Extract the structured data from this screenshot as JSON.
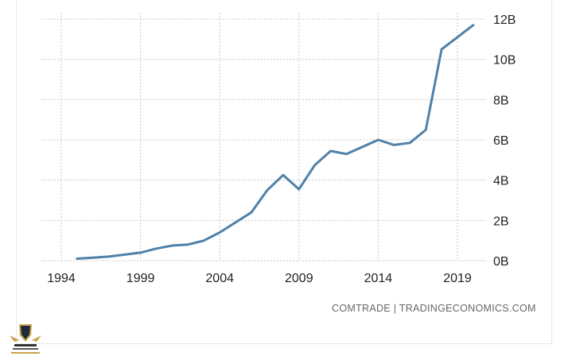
{
  "chart_data": {
    "type": "line",
    "x": [
      1995,
      1996,
      1997,
      1998,
      1999,
      2000,
      2001,
      2002,
      2003,
      2004,
      2005,
      2006,
      2007,
      2008,
      2009,
      2010,
      2011,
      2012,
      2013,
      2014,
      2015,
      2016,
      2017,
      2018,
      2019,
      2020
    ],
    "series": [
      {
        "values": [
          0.1,
          0.15,
          0.2,
          0.3,
          0.4,
          0.6,
          0.75,
          0.8,
          1.0,
          1.4,
          1.9,
          2.4,
          3.5,
          4.25,
          3.55,
          4.75,
          5.45,
          5.3,
          5.65,
          6.0,
          5.75,
          5.85,
          6.5,
          10.5,
          11.1,
          11.7
        ],
        "color": "#4f81a9"
      }
    ],
    "x_ticks": [
      "1994",
      "1999",
      "2004",
      "2009",
      "2014",
      "2019"
    ],
    "y_ticks": [
      "0B",
      "2B",
      "4B",
      "6B",
      "8B",
      "10B",
      "12B"
    ],
    "xlim": [
      1994,
      2021
    ],
    "ylim": [
      0,
      12
    ],
    "y_unit": "B",
    "y_axis_side": "right",
    "grid": "dotted",
    "legend": "none"
  },
  "source": "COMTRADE | TRADINGECONOMICS.COM",
  "logo": {
    "text": "ARAB DEFENSE FORUM"
  }
}
